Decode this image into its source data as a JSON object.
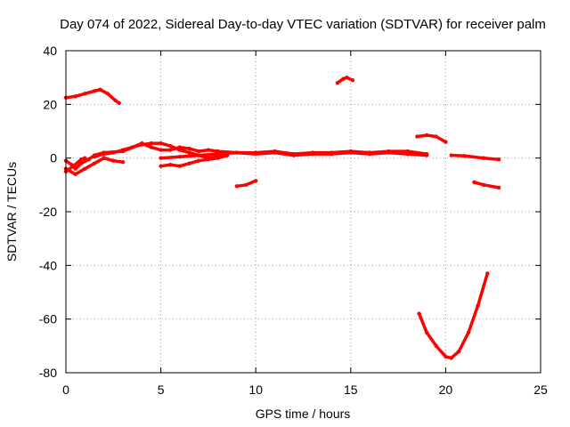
{
  "chart_data": {
    "type": "scatter",
    "title": "Day 074 of 2022, Sidereal Day-to-day VTEC variation (SDTVAR) for receiver palm",
    "xlabel": "GPS time / hours",
    "ylabel": "SDTVAR / TECUs",
    "xlim": [
      0,
      25
    ],
    "ylim": [
      -80,
      40
    ],
    "xticks": [
      0,
      5,
      10,
      15,
      20,
      25
    ],
    "yticks": [
      -80,
      -60,
      -40,
      -20,
      0,
      20,
      40
    ],
    "grid": true,
    "color": "#ff0000",
    "series": [
      {
        "name": "arc-1",
        "points": [
          [
            0,
            22.5
          ],
          [
            0.5,
            23
          ],
          [
            1,
            24
          ],
          [
            1.5,
            25
          ],
          [
            1.8,
            25.5
          ],
          [
            2.2,
            24
          ],
          [
            2.6,
            21.5
          ],
          [
            2.8,
            20.5
          ]
        ]
      },
      {
        "name": "arc-2",
        "points": [
          [
            14.3,
            28
          ],
          [
            14.6,
            29.5
          ],
          [
            14.8,
            30
          ],
          [
            15.1,
            29
          ]
        ]
      },
      {
        "name": "arc-3",
        "points": [
          [
            0,
            -1
          ],
          [
            0.3,
            -2.5
          ],
          [
            0.5,
            -4
          ],
          [
            0.8,
            -2
          ],
          [
            1.2,
            -0.5
          ],
          [
            1.5,
            1
          ],
          [
            2,
            2
          ],
          [
            3,
            2.5
          ],
          [
            3.5,
            4
          ],
          [
            4,
            5.5
          ],
          [
            4.5,
            4
          ],
          [
            5,
            3
          ],
          [
            5.5,
            3
          ],
          [
            6,
            4
          ],
          [
            6.5,
            3.5
          ],
          [
            7,
            2.5
          ],
          [
            7.5,
            3
          ],
          [
            8,
            2.5
          ],
          [
            9,
            2
          ],
          [
            10,
            2
          ],
          [
            11,
            2.5
          ],
          [
            12,
            1.5
          ],
          [
            13,
            2
          ],
          [
            14,
            2
          ],
          [
            15,
            2.5
          ],
          [
            16,
            2
          ],
          [
            17,
            2.5
          ],
          [
            18,
            2.5
          ],
          [
            19,
            1.5
          ]
        ]
      },
      {
        "name": "arc-4",
        "points": [
          [
            0,
            -4
          ],
          [
            0.5,
            -6
          ],
          [
            1,
            -4
          ],
          [
            1.5,
            -2
          ],
          [
            2,
            0
          ],
          [
            2.5,
            -1
          ],
          [
            3,
            -1.5
          ]
        ]
      },
      {
        "name": "arc-5",
        "points": [
          [
            1.5,
            0.5
          ],
          [
            2,
            1.5
          ],
          [
            2.5,
            2
          ],
          [
            3,
            3
          ],
          [
            3.5,
            4
          ],
          [
            4,
            5
          ],
          [
            4.5,
            5.5
          ],
          [
            5,
            5.5
          ],
          [
            5.5,
            4.5
          ],
          [
            6,
            3
          ],
          [
            6.5,
            2
          ],
          [
            7,
            1
          ],
          [
            7.5,
            0
          ],
          [
            8,
            0.5
          ],
          [
            8.5,
            1
          ]
        ]
      },
      {
        "name": "arc-6",
        "points": [
          [
            5,
            -3
          ],
          [
            5.5,
            -2.5
          ],
          [
            6,
            -3
          ],
          [
            6.5,
            -2
          ],
          [
            7,
            -1
          ],
          [
            7.5,
            -0.5
          ],
          [
            8,
            0
          ],
          [
            8.5,
            1
          ]
        ]
      },
      {
        "name": "arc-7",
        "points": [
          [
            5,
            0
          ],
          [
            6,
            0.5
          ],
          [
            7,
            1
          ],
          [
            8,
            1.5
          ],
          [
            9,
            2
          ],
          [
            10,
            1.5
          ],
          [
            11,
            2
          ],
          [
            12,
            1
          ],
          [
            13,
            1.5
          ],
          [
            14,
            1.5
          ],
          [
            15,
            2
          ],
          [
            16,
            1.5
          ],
          [
            17,
            2
          ],
          [
            18,
            1.5
          ],
          [
            19,
            1
          ]
        ]
      },
      {
        "name": "arc-8",
        "points": [
          [
            9,
            -10.5
          ],
          [
            9.5,
            -10
          ],
          [
            10,
            -8.5
          ]
        ]
      },
      {
        "name": "arc-9",
        "points": [
          [
            18.5,
            8
          ],
          [
            19,
            8.5
          ],
          [
            19.5,
            8
          ],
          [
            20,
            6
          ]
        ]
      },
      {
        "name": "arc-10",
        "points": [
          [
            20.3,
            1
          ],
          [
            21,
            0.8
          ],
          [
            22,
            0
          ],
          [
            22.8,
            -0.5
          ]
        ]
      },
      {
        "name": "arc-11",
        "points": [
          [
            21.5,
            -9
          ],
          [
            22,
            -10
          ],
          [
            22.8,
            -11
          ]
        ]
      },
      {
        "name": "arc-12",
        "points": [
          [
            18.6,
            -58
          ],
          [
            19,
            -65
          ],
          [
            19.5,
            -70
          ],
          [
            20,
            -74
          ],
          [
            20.3,
            -74.5
          ],
          [
            20.7,
            -72
          ],
          [
            21.2,
            -65
          ],
          [
            21.7,
            -55
          ],
          [
            22.2,
            -43
          ]
        ]
      },
      {
        "name": "arc-13",
        "points": [
          [
            0,
            -5
          ],
          [
            0.4,
            -3
          ],
          [
            0.8,
            -0.5
          ],
          [
            1,
            0
          ]
        ]
      }
    ]
  }
}
